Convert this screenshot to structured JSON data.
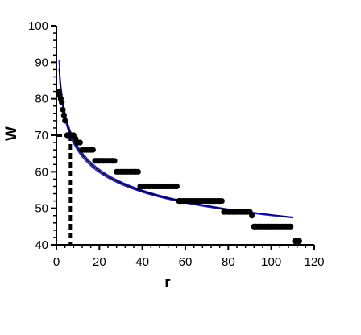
{
  "chart_data": {
    "type": "scatter",
    "xlabel": "r",
    "ylabel": "W",
    "xlim": [
      0,
      120
    ],
    "ylim": [
      40,
      100
    ],
    "x_ticks": [
      "0",
      "20",
      "40",
      "60",
      "80",
      "100",
      "120"
    ],
    "y_ticks": [
      "40",
      "50",
      "60",
      "70",
      "80",
      "90",
      "100"
    ],
    "grid": false,
    "legend": "none",
    "points": [
      {
        "x": 1,
        "y": 82
      },
      {
        "x": 1.5,
        "y": 81
      },
      {
        "x": 2,
        "y": 80
      },
      {
        "x": 2.5,
        "y": 79
      },
      {
        "x": 3,
        "y": 77
      },
      {
        "x": 3.5,
        "y": 75.5
      },
      {
        "x": 4,
        "y": 74
      },
      {
        "x": 5,
        "y": 70
      },
      {
        "x": 6,
        "y": 70
      },
      {
        "x": 7,
        "y": 70
      },
      {
        "x": 8,
        "y": 70
      },
      {
        "x": 9,
        "y": 69
      },
      {
        "x": 10,
        "y": 68
      },
      {
        "x": 11,
        "y": 68
      },
      {
        "x": 12,
        "y": 66
      },
      {
        "x": 13,
        "y": 66
      },
      {
        "x": 14,
        "y": 66
      },
      {
        "x": 15,
        "y": 66
      },
      {
        "x": 16,
        "y": 66
      },
      {
        "x": 17,
        "y": 66
      },
      {
        "x": 18,
        "y": 63
      },
      {
        "x": 19,
        "y": 63
      },
      {
        "x": 20,
        "y": 63
      },
      {
        "x": 21,
        "y": 63
      },
      {
        "x": 22,
        "y": 63
      },
      {
        "x": 23,
        "y": 63
      },
      {
        "x": 24,
        "y": 63
      },
      {
        "x": 25,
        "y": 63
      },
      {
        "x": 26,
        "y": 63
      },
      {
        "x": 27,
        "y": 63
      },
      {
        "x": 28,
        "y": 60
      },
      {
        "x": 29,
        "y": 60
      },
      {
        "x": 30,
        "y": 60
      },
      {
        "x": 31,
        "y": 60
      },
      {
        "x": 32,
        "y": 60
      },
      {
        "x": 33,
        "y": 60
      },
      {
        "x": 34,
        "y": 60
      },
      {
        "x": 35,
        "y": 60
      },
      {
        "x": 36,
        "y": 60
      },
      {
        "x": 37,
        "y": 60
      },
      {
        "x": 38,
        "y": 60
      },
      {
        "x": 39,
        "y": 56
      },
      {
        "x": 40,
        "y": 56
      },
      {
        "x": 41,
        "y": 56
      },
      {
        "x": 42,
        "y": 56
      },
      {
        "x": 43,
        "y": 56
      },
      {
        "x": 44,
        "y": 56
      },
      {
        "x": 45,
        "y": 56
      },
      {
        "x": 46,
        "y": 56
      },
      {
        "x": 47,
        "y": 56
      },
      {
        "x": 48,
        "y": 56
      },
      {
        "x": 49,
        "y": 56
      },
      {
        "x": 50,
        "y": 56
      },
      {
        "x": 51,
        "y": 56
      },
      {
        "x": 52,
        "y": 56
      },
      {
        "x": 53,
        "y": 56
      },
      {
        "x": 54,
        "y": 56
      },
      {
        "x": 55,
        "y": 56
      },
      {
        "x": 56,
        "y": 56
      },
      {
        "x": 57,
        "y": 52
      },
      {
        "x": 58,
        "y": 52
      },
      {
        "x": 59,
        "y": 52
      },
      {
        "x": 60,
        "y": 52
      },
      {
        "x": 61,
        "y": 52
      },
      {
        "x": 62,
        "y": 52
      },
      {
        "x": 63,
        "y": 52
      },
      {
        "x": 64,
        "y": 52
      },
      {
        "x": 65,
        "y": 52
      },
      {
        "x": 66,
        "y": 52
      },
      {
        "x": 67,
        "y": 52
      },
      {
        "x": 68,
        "y": 52
      },
      {
        "x": 69,
        "y": 52
      },
      {
        "x": 70,
        "y": 52
      },
      {
        "x": 71,
        "y": 52
      },
      {
        "x": 72,
        "y": 52
      },
      {
        "x": 73,
        "y": 52
      },
      {
        "x": 74,
        "y": 52
      },
      {
        "x": 75,
        "y": 52
      },
      {
        "x": 76,
        "y": 52
      },
      {
        "x": 77,
        "y": 52
      },
      {
        "x": 78,
        "y": 49
      },
      {
        "x": 79,
        "y": 49
      },
      {
        "x": 80,
        "y": 49
      },
      {
        "x": 81,
        "y": 49
      },
      {
        "x": 82,
        "y": 49
      },
      {
        "x": 83,
        "y": 49
      },
      {
        "x": 84,
        "y": 49
      },
      {
        "x": 85,
        "y": 49
      },
      {
        "x": 86,
        "y": 49
      },
      {
        "x": 87,
        "y": 49
      },
      {
        "x": 88,
        "y": 49
      },
      {
        "x": 89,
        "y": 49
      },
      {
        "x": 90,
        "y": 49
      },
      {
        "x": 91,
        "y": 48
      },
      {
        "x": 92,
        "y": 45
      },
      {
        "x": 93,
        "y": 45
      },
      {
        "x": 94,
        "y": 45
      },
      {
        "x": 95,
        "y": 45
      },
      {
        "x": 96,
        "y": 45
      },
      {
        "x": 97,
        "y": 45
      },
      {
        "x": 98,
        "y": 45
      },
      {
        "x": 99,
        "y": 45
      },
      {
        "x": 100,
        "y": 45
      },
      {
        "x": 101,
        "y": 45
      },
      {
        "x": 102,
        "y": 45
      },
      {
        "x": 103,
        "y": 45
      },
      {
        "x": 104,
        "y": 45
      },
      {
        "x": 105,
        "y": 45
      },
      {
        "x": 106,
        "y": 45
      },
      {
        "x": 107,
        "y": 45
      },
      {
        "x": 108,
        "y": 45
      },
      {
        "x": 109,
        "y": 45
      },
      {
        "x": 111,
        "y": 41
      },
      {
        "x": 112,
        "y": 41
      },
      {
        "x": 113,
        "y": 41
      }
    ],
    "fits": [
      {
        "a": 93,
        "b": 0.1425,
        "x_start": 1.2,
        "x_end": 110,
        "color": "#1a1ad6",
        "role": "upper-band"
      },
      {
        "a": 91.5,
        "b": 0.1395,
        "x_start": 1.3,
        "x_end": 110,
        "color": "#000000",
        "role": "fit"
      },
      {
        "a": 90,
        "b": 0.1365,
        "x_start": 1.4,
        "x_end": 110,
        "color": "#1a1ad6",
        "role": "lower-band"
      }
    ],
    "reference": {
      "x": 6.5,
      "y": 70,
      "style": "dashed",
      "color": "#000000"
    },
    "colors": {
      "points": "#000000",
      "fit": "#000000",
      "band": "#1a1ad6",
      "axis": "#000000"
    }
  }
}
